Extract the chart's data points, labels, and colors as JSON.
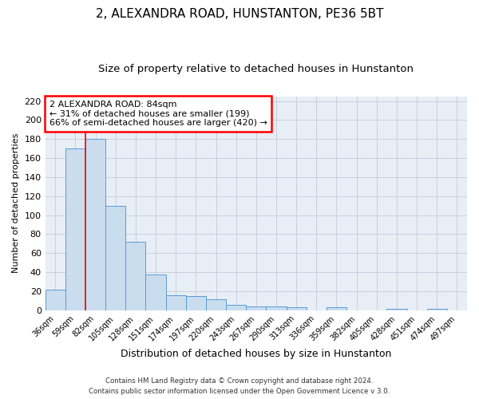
{
  "title": "2, ALEXANDRA ROAD, HUNSTANTON, PE36 5BT",
  "subtitle": "Size of property relative to detached houses in Hunstanton",
  "xlabel": "Distribution of detached houses by size in Hunstanton",
  "ylabel": "Number of detached properties",
  "bin_labels": [
    "36sqm",
    "59sqm",
    "82sqm",
    "105sqm",
    "128sqm",
    "151sqm",
    "174sqm",
    "197sqm",
    "220sqm",
    "243sqm",
    "267sqm",
    "290sqm",
    "313sqm",
    "336sqm",
    "359sqm",
    "382sqm",
    "405sqm",
    "428sqm",
    "451sqm",
    "474sqm",
    "497sqm"
  ],
  "bar_heights": [
    22,
    170,
    180,
    110,
    72,
    38,
    16,
    15,
    12,
    6,
    4,
    4,
    3,
    0,
    3,
    0,
    0,
    2,
    0,
    2,
    0
  ],
  "bar_color": "#c9ddef",
  "bar_edge_color": "#5b9bd5",
  "red_line_x": 1.5,
  "ylim": [
    0,
    225
  ],
  "yticks": [
    0,
    20,
    40,
    60,
    80,
    100,
    120,
    140,
    160,
    180,
    200,
    220
  ],
  "annotation_title": "2 ALEXANDRA ROAD: 84sqm",
  "annotation_line1": "← 31% of detached houses are smaller (199)",
  "annotation_line2": "66% of semi-detached houses are larger (420) →",
  "footer1": "Contains HM Land Registry data © Crown copyright and database right 2024.",
  "footer2": "Contains public sector information licensed under the Open Government Licence v 3.0.",
  "background_color": "#ffffff",
  "plot_bg_color": "#e8eef5",
  "grid_color": "#c8d0dc",
  "title_fontsize": 11,
  "subtitle_fontsize": 9.5
}
